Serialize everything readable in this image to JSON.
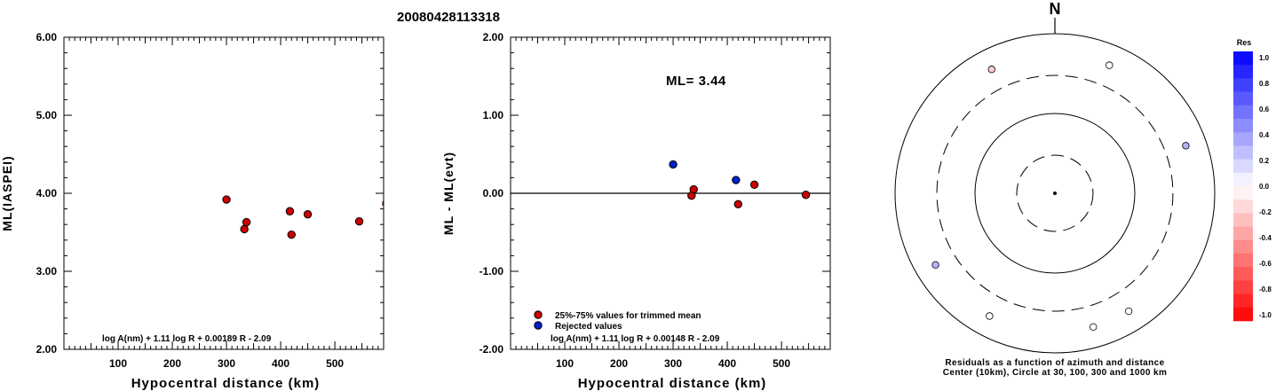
{
  "event_id": "20080428113318",
  "colors": {
    "accepted": "#cc0000",
    "rejected": "#0022cc",
    "axis": "#000000"
  },
  "chart_data": [
    {
      "type": "scatter",
      "xlabel": "Hypocentral distance (km)",
      "ylabel": "ML(IASPEI)",
      "xlim": [
        0,
        590
      ],
      "ylim": [
        2.0,
        6.0
      ],
      "x_ticks": [
        100,
        200,
        300,
        400,
        500
      ],
      "y_ticks": [
        2.0,
        3.0,
        4.0,
        5.0,
        6.0
      ],
      "y_tick_labels": [
        "2.00",
        "3.00",
        "4.00",
        "5.00",
        "6.00"
      ],
      "formula": "log A(nm) + 1.11 log R + 0.00189 R - 2.09",
      "points": [
        {
          "x": 300,
          "y": 3.92,
          "group": "trimmed"
        },
        {
          "x": 333,
          "y": 3.54,
          "group": "trimmed"
        },
        {
          "x": 337,
          "y": 3.63,
          "group": "trimmed"
        },
        {
          "x": 417,
          "y": 3.77,
          "group": "trimmed"
        },
        {
          "x": 420,
          "y": 3.47,
          "group": "trimmed"
        },
        {
          "x": 450,
          "y": 3.73,
          "group": "trimmed"
        },
        {
          "x": 545,
          "y": 3.64,
          "group": "trimmed"
        }
      ],
      "edge_point": {
        "x": 590,
        "y": 3.87
      }
    },
    {
      "type": "scatter",
      "xlabel": "Hypocentral distance (km)",
      "ylabel": "ML - ML(evt)",
      "xlim": [
        0,
        590
      ],
      "ylim": [
        -2.0,
        2.0
      ],
      "x_ticks": [
        100,
        200,
        300,
        400,
        500
      ],
      "y_ticks": [
        -2.0,
        -1.0,
        0.0,
        1.0,
        2.0
      ],
      "y_tick_labels": [
        "-2.00",
        "-1.00",
        "0.00",
        "1.00",
        "2.00"
      ],
      "annotation": "ML= 3.44",
      "zero_line": 0.0,
      "formula": "log A(nm) + 1.11 log R + 0.00148 R - 2.09",
      "legend": [
        {
          "label": "25%-75% values for trimmed mean",
          "group": "trimmed"
        },
        {
          "label": "Rejected values",
          "group": "rejected"
        }
      ],
      "points": [
        {
          "x": 300,
          "y": 0.37,
          "group": "rejected"
        },
        {
          "x": 334,
          "y": -0.03,
          "group": "trimmed"
        },
        {
          "x": 338,
          "y": 0.05,
          "group": "trimmed"
        },
        {
          "x": 416,
          "y": 0.17,
          "group": "rejected"
        },
        {
          "x": 420,
          "y": -0.14,
          "group": "trimmed"
        },
        {
          "x": 450,
          "y": 0.11,
          "group": "trimmed"
        },
        {
          "x": 545,
          "y": -0.02,
          "group": "trimmed"
        }
      ]
    },
    {
      "type": "polar-scatter",
      "north_label": "N",
      "caption_line1": "Residuals as a function of azimuth and distance",
      "caption_line2": "Center (10km), Circle at 30, 100, 300 and 1000 km",
      "circles_km": [
        30,
        100,
        300,
        1000
      ],
      "circle_styles": [
        "dashed",
        "solid",
        "dashed",
        "solid"
      ],
      "points": [
        {
          "azimuth_deg": 333,
          "residual": -0.2
        },
        {
          "azimuth_deg": 23,
          "residual": 0.0
        },
        {
          "azimuth_deg": 70,
          "residual": 0.3
        },
        {
          "azimuth_deg": 239,
          "residual": 0.3
        },
        {
          "azimuth_deg": 208,
          "residual": 0.0
        },
        {
          "azimuth_deg": 164,
          "residual": 0.0
        },
        {
          "azimuth_deg": 148,
          "residual": 0.0
        }
      ],
      "colorbar": {
        "title": "Res",
        "labels": [
          "1.0",
          "0.8",
          "0.6",
          "0.4",
          "0.2",
          "0.0",
          "-0.2",
          "-0.4",
          "-0.6",
          "-0.8",
          "-1.0"
        ]
      }
    }
  ]
}
